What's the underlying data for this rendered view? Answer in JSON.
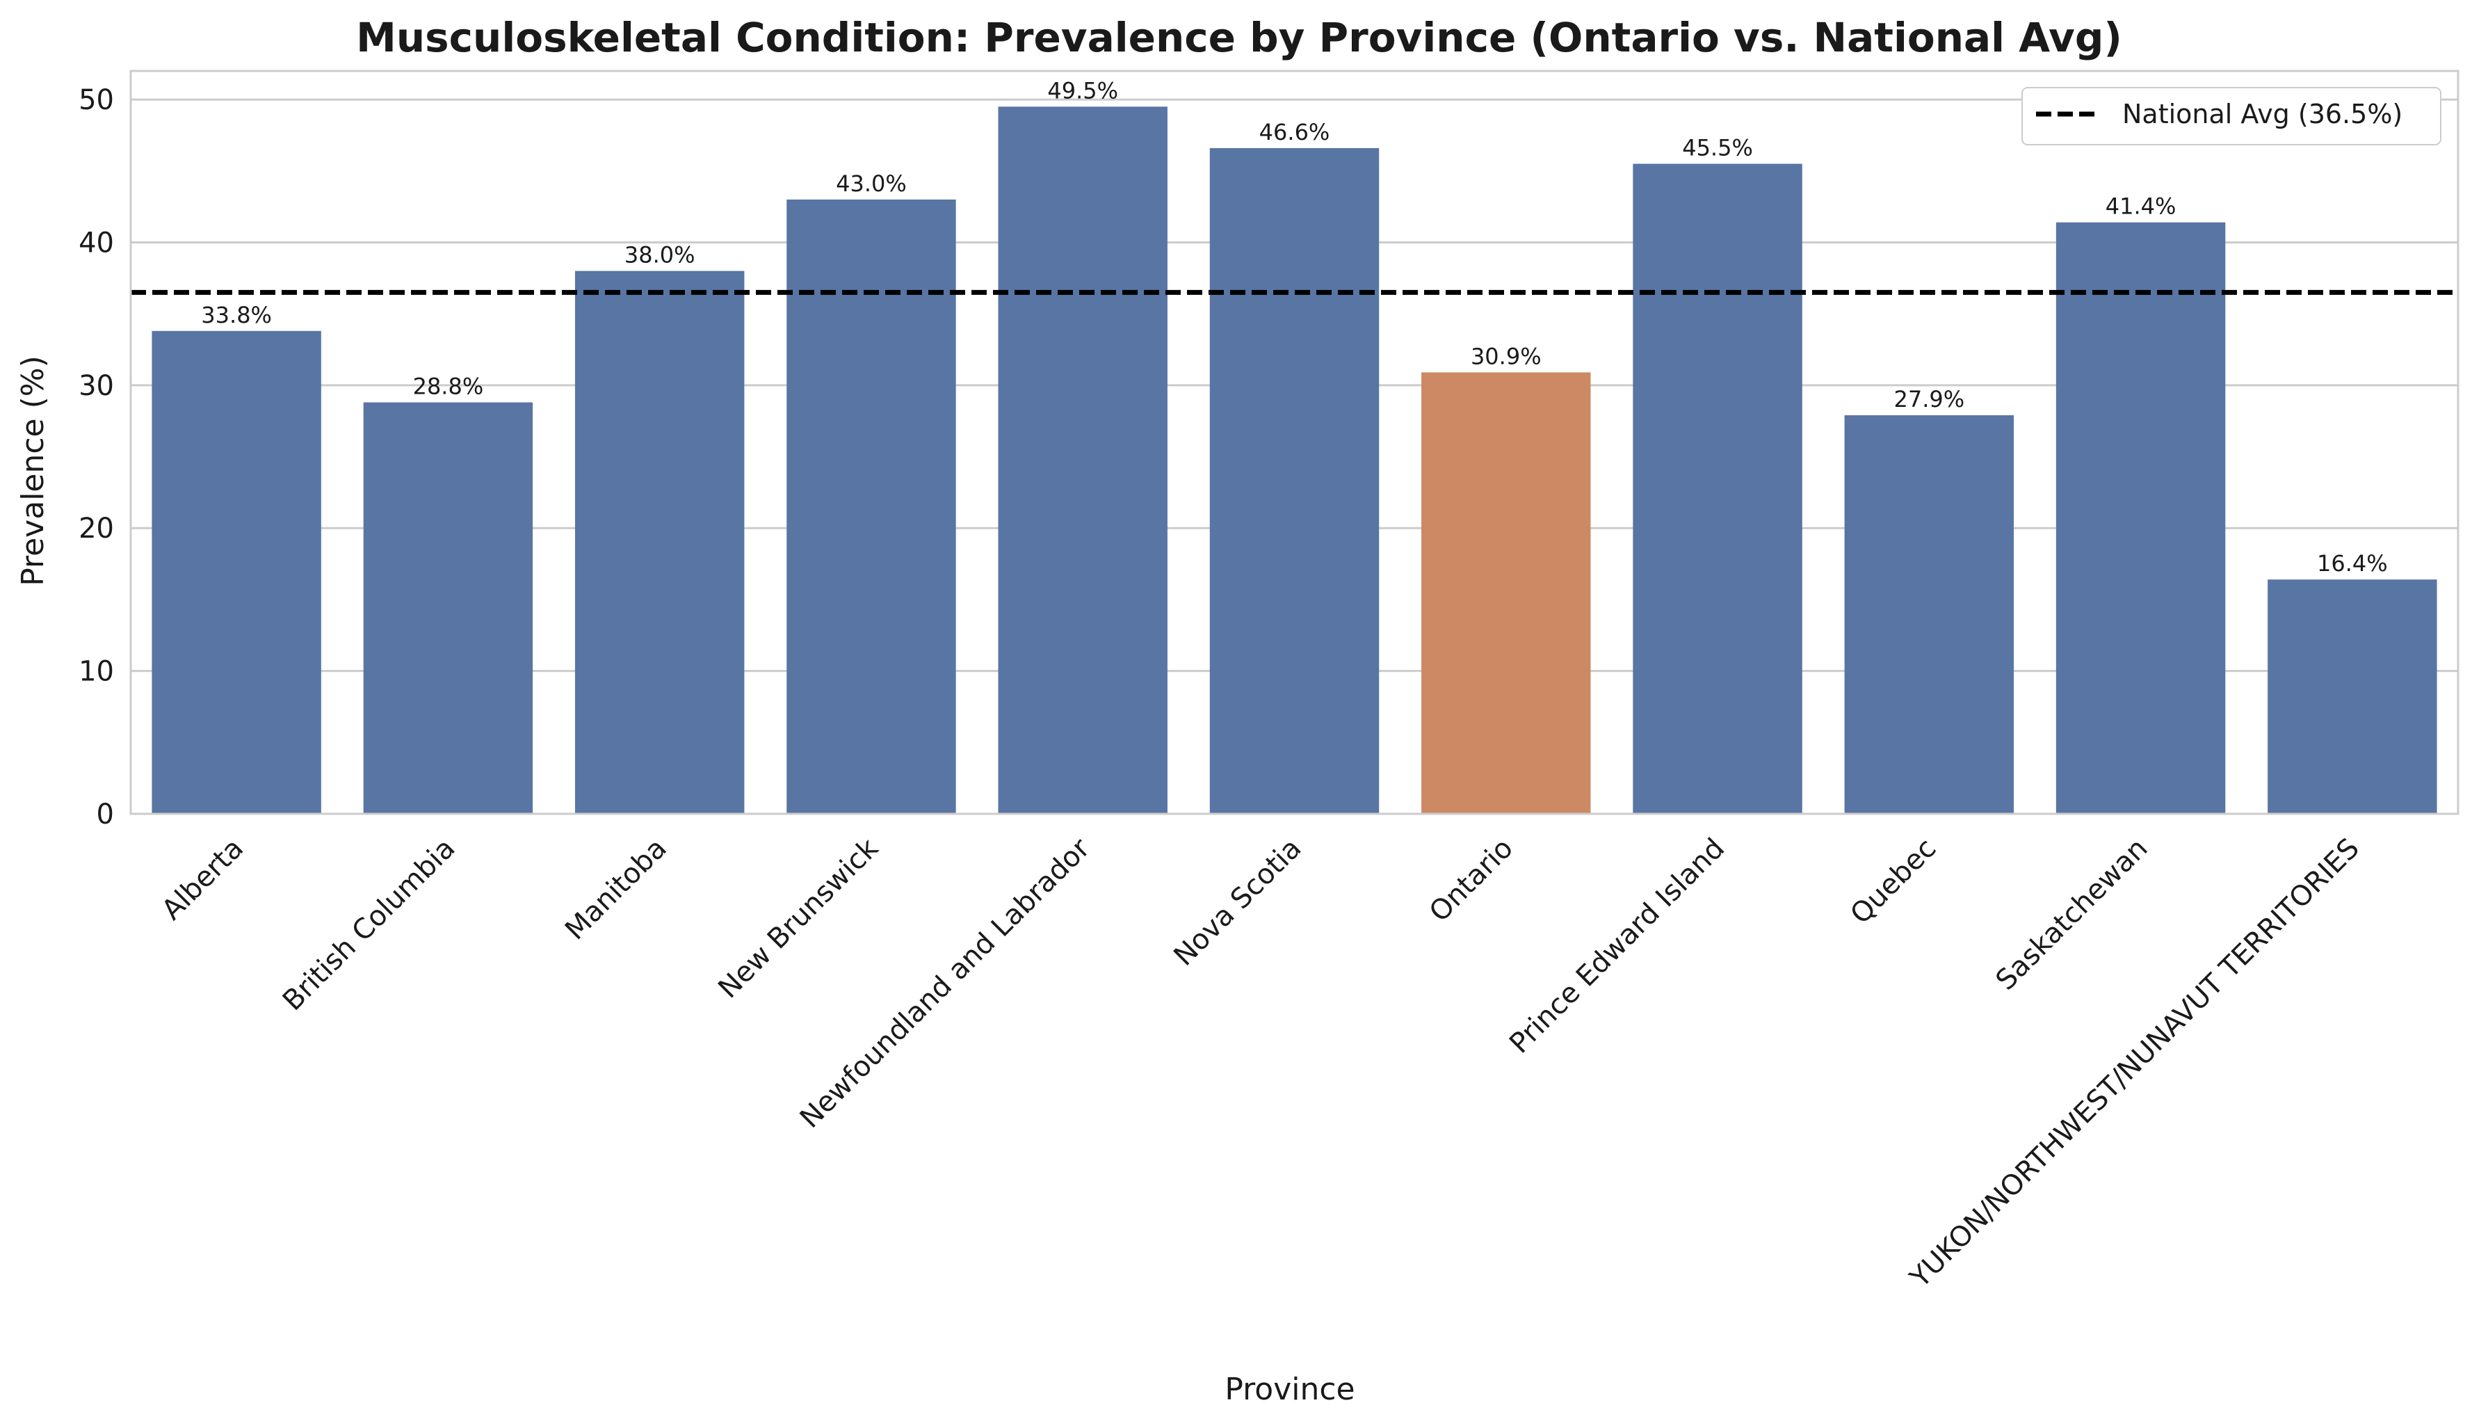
{
  "chart_data": {
    "type": "bar",
    "title": "Musculoskeletal Condition: Prevalence by Province (Ontario vs. National Avg)",
    "xlabel": "Province",
    "ylabel": "Prevalence (%)",
    "ylim": [
      0,
      52
    ],
    "yticks": [
      0,
      10,
      20,
      30,
      40,
      50
    ],
    "grid": "horizontal",
    "legend_position": "top-right",
    "categories": [
      "Alberta",
      "British Columbia",
      "Manitoba",
      "New Brunswick",
      "Newfoundland and Labrador",
      "Nova Scotia",
      "Ontario",
      "Prince Edward Island",
      "Quebec",
      "Saskatchewan",
      "YUKON/NORTHWEST/NUNAVUT TERRITORIES"
    ],
    "values": [
      33.8,
      28.8,
      38.0,
      43.0,
      49.5,
      46.6,
      30.9,
      45.5,
      27.9,
      41.4,
      16.4
    ],
    "data_labels": [
      "33.8%",
      "28.8%",
      "38.0%",
      "43.0%",
      "49.5%",
      "46.6%",
      "30.9%",
      "45.5%",
      "27.9%",
      "41.4%",
      "16.4%"
    ],
    "highlight": "Ontario",
    "colors": {
      "default": "#5875a4",
      "highlight": "#cc8963",
      "reference_line": "#000000",
      "grid": "#cccccc",
      "spine": "#cccccc"
    },
    "reference_line": {
      "value": 36.5,
      "label": "National Avg (36.5%)",
      "style": "dashed"
    }
  }
}
